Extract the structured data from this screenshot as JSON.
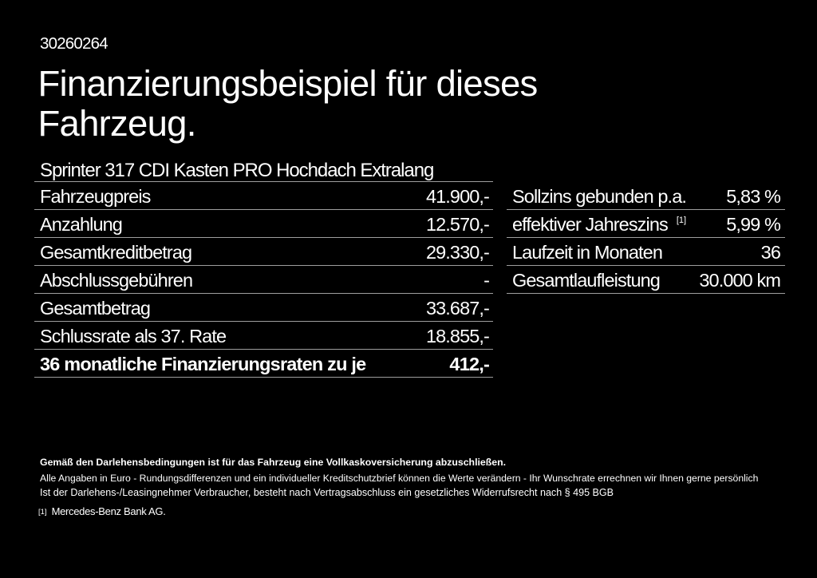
{
  "page": {
    "background_color": "#000000",
    "text_color": "#ffffff",
    "divider_color": "#9e9e9e"
  },
  "doc_number": "30260264",
  "title": {
    "line1": "Finanzierungsbeispiel für dieses",
    "line2": "Fahrzeug."
  },
  "subtitle": "Sprinter 317 CDI Kasten PRO Hochdach Extralang",
  "finance_table": {
    "rows": [
      {
        "label": "Fahrzeugpreis",
        "value": "41.900,-"
      },
      {
        "label": "Anzahlung",
        "value": "12.570,-"
      },
      {
        "label": "Gesamtkreditbetrag",
        "value": "29.330,-"
      },
      {
        "label": "Abschlussgebühren",
        "value": "-"
      },
      {
        "label": "Gesamtbetrag",
        "value": "33.687,-"
      },
      {
        "label": "Schlussrate als 37. Rate",
        "value": "18.855,-"
      },
      {
        "label": "36 monatliche Finanzierungsraten zu je",
        "value": "412,-"
      }
    ]
  },
  "conditions_table": {
    "rows": [
      {
        "label": "Sollzins gebunden p.a.",
        "sup": "",
        "value": "5,83 %"
      },
      {
        "label": "effektiver Jahreszins",
        "sup": "[1]",
        "value": "5,99 %"
      },
      {
        "label": "Laufzeit in Monaten",
        "sup": "",
        "value": "36"
      },
      {
        "label": "Gesamtlaufleistung",
        "sup": "",
        "value": "30.000 km"
      }
    ]
  },
  "disclaimer": {
    "bold_line": "Gemäß den Darlehensbedingungen ist für das Fahrzeug eine Vollkaskoversicherung abzuschließen.",
    "line2": "Alle Angaben in Euro - Rundungsdifferenzen und ein individueller Kreditschutzbrief können die Werte verändern - Ihr Wunschrate errechnen wir Ihnen gerne persönlich",
    "line3": "Ist der Darlehens-/Leasingnehmer Verbraucher, besteht nach Vertragsabschluss ein gesetzliches Widerrufsrecht nach § 495 BGB"
  },
  "footnote": {
    "marker": "[1]",
    "text": "Mercedes-Benz Bank AG."
  }
}
